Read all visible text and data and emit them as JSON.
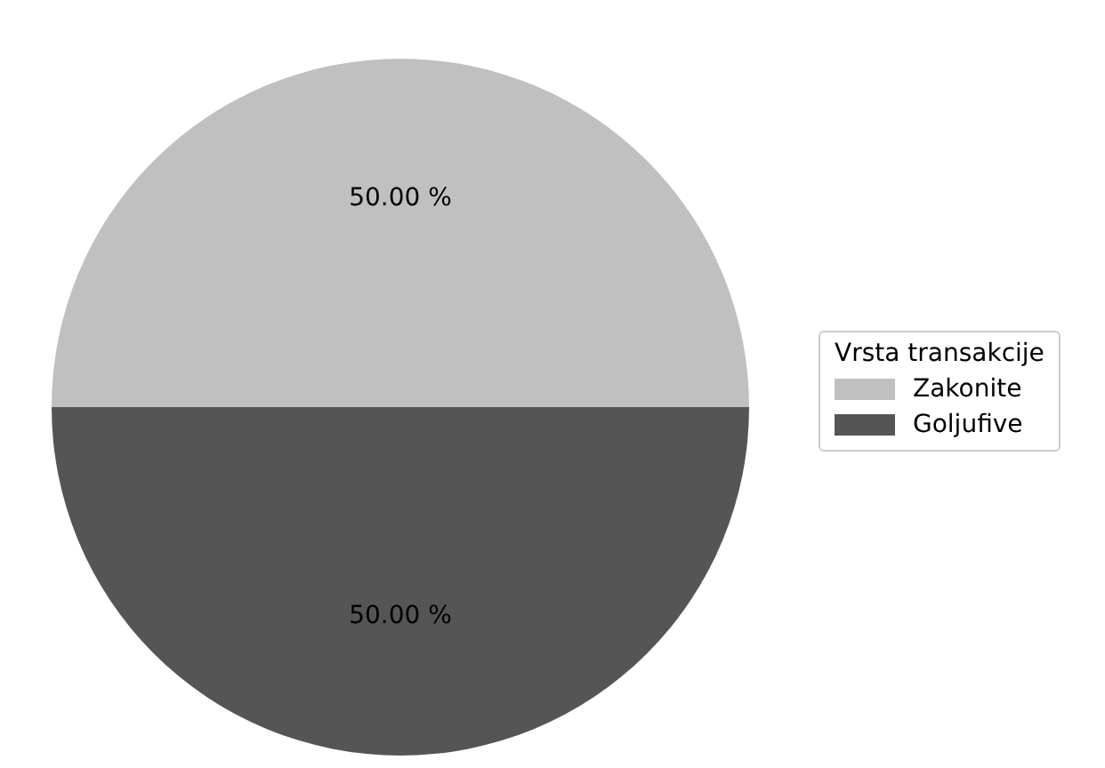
{
  "chart_data": {
    "type": "pie",
    "legend_title": "Vrsta transakcije",
    "categories": [
      "Zakonite",
      "Goljufive"
    ],
    "values": [
      50,
      50
    ],
    "colors": [
      "#c0c0c0",
      "#555555"
    ],
    "value_labels": [
      "50.00 %",
      "50.00 %"
    ],
    "legend": "right"
  }
}
